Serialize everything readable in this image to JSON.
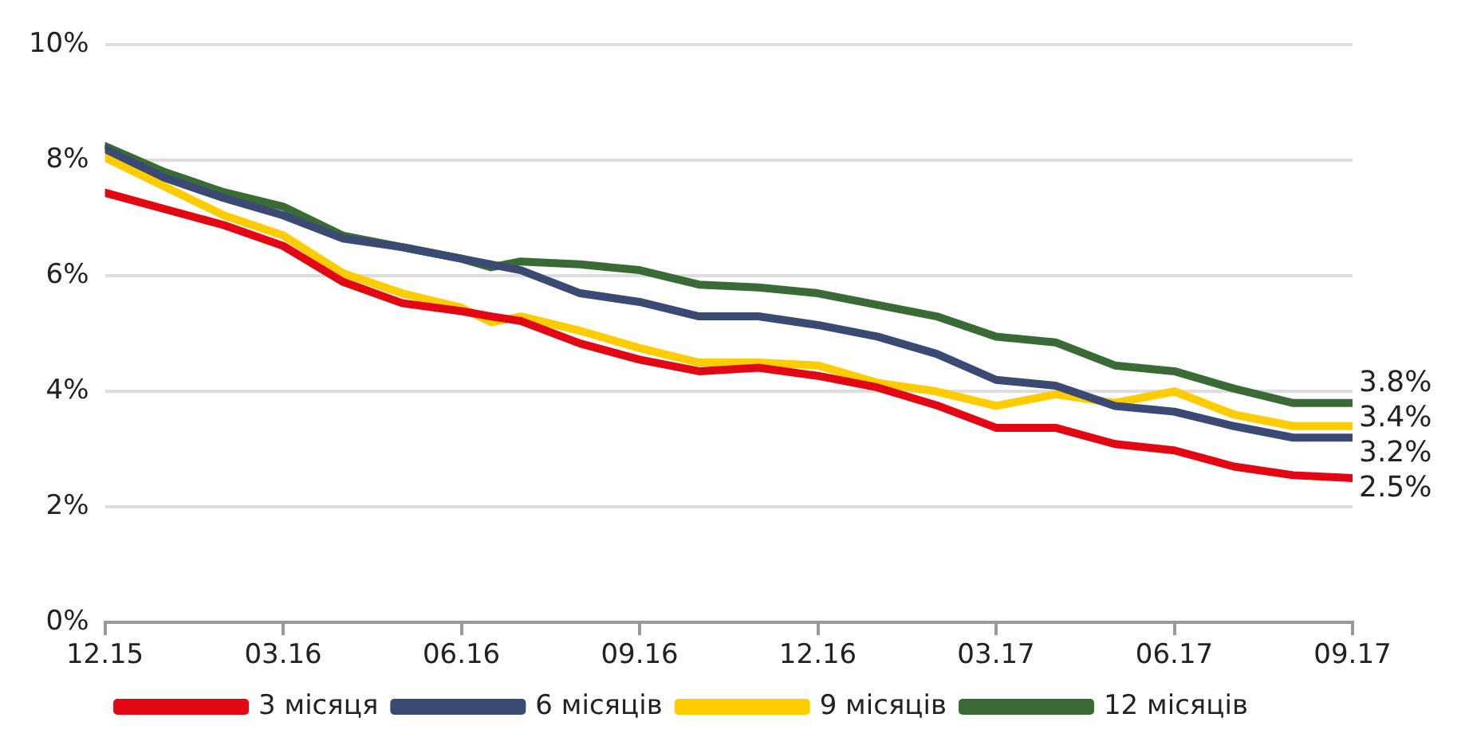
{
  "chart_data": {
    "type": "line",
    "x": [
      "2015-12",
      "2016-01",
      "2016-02",
      "2016-03",
      "2016-04",
      "2016-05",
      "2016-06",
      "2016-06-16",
      "2016-07",
      "2016-08",
      "2016-09",
      "2016-10",
      "2016-11",
      "2016-12",
      "2017-01",
      "2017-02",
      "2017-03",
      "2017-04",
      "2017-05",
      "2017-06",
      "2017-07",
      "2017-08",
      "2017-09"
    ],
    "series": [
      {
        "name": "3 місяця",
        "color": "#e30613",
        "values": [
          7.44,
          7.16,
          6.88,
          6.52,
          5.9,
          5.53,
          5.39,
          5.3,
          5.22,
          4.83,
          4.55,
          4.35,
          4.41,
          4.27,
          4.07,
          3.76,
          3.37,
          3.37,
          3.09,
          2.98,
          2.7,
          2.55,
          2.5
        ],
        "value_labels": [
          null,
          null,
          null,
          null,
          null,
          null,
          null,
          null,
          null,
          null,
          null,
          null,
          null,
          null,
          null,
          null,
          null,
          null,
          null,
          null,
          null,
          null,
          "2.5%"
        ]
      },
      {
        "name": "6 місяців",
        "color": "#3b4a72",
        "values": [
          8.2,
          7.7,
          7.35,
          7.05,
          6.65,
          6.5,
          6.3,
          6.2,
          6.1,
          5.7,
          5.55,
          5.3,
          5.3,
          5.15,
          4.95,
          4.65,
          4.2,
          4.1,
          3.75,
          3.65,
          3.4,
          3.2,
          3.2
        ],
        "value_labels": [
          null,
          null,
          null,
          null,
          null,
          null,
          null,
          null,
          null,
          null,
          null,
          null,
          null,
          null,
          null,
          null,
          null,
          null,
          null,
          null,
          null,
          null,
          "3.2%"
        ]
      },
      {
        "name": "9 місяців",
        "color": "#ffcc00",
        "values": [
          8.05,
          7.55,
          7.05,
          6.7,
          6.05,
          5.7,
          5.45,
          5.2,
          5.3,
          5.05,
          4.75,
          4.5,
          4.5,
          4.45,
          4.15,
          4.0,
          3.75,
          3.95,
          3.8,
          4.0,
          3.6,
          3.4,
          3.4
        ],
        "value_labels": [
          null,
          null,
          null,
          null,
          null,
          null,
          null,
          null,
          null,
          null,
          null,
          null,
          null,
          null,
          null,
          null,
          null,
          null,
          null,
          null,
          null,
          null,
          "3.4%"
        ]
      },
      {
        "name": "12 місяців",
        "color": "#3a6b35",
        "values": [
          8.25,
          7.8,
          7.45,
          7.2,
          6.7,
          6.5,
          6.3,
          6.15,
          6.25,
          6.2,
          6.1,
          5.85,
          5.8,
          5.7,
          5.5,
          5.3,
          4.95,
          4.85,
          4.45,
          4.35,
          4.05,
          3.8,
          3.8
        ],
        "value_labels": [
          null,
          null,
          null,
          null,
          null,
          null,
          null,
          null,
          null,
          null,
          null,
          null,
          null,
          null,
          null,
          null,
          null,
          null,
          null,
          null,
          null,
          null,
          "3.8%"
        ]
      }
    ],
    "xlim": [
      "2015-12",
      "2017-09"
    ],
    "xticks": [
      {
        "value": "2015-12",
        "label": "12.15"
      },
      {
        "value": "2016-03",
        "label": "03.16"
      },
      {
        "value": "2016-06",
        "label": "06.16"
      },
      {
        "value": "2016-09",
        "label": "09.16"
      },
      {
        "value": "2016-12",
        "label": "12.16"
      },
      {
        "value": "2017-03",
        "label": "03.17"
      },
      {
        "value": "2017-06",
        "label": "06.17"
      },
      {
        "value": "2017-09",
        "label": "09.17"
      }
    ],
    "ylim": [
      0,
      10
    ],
    "yticks": [
      {
        "value": 0,
        "label": "0%"
      },
      {
        "value": 2,
        "label": "2%"
      },
      {
        "value": 4,
        "label": "4%"
      },
      {
        "value": 6,
        "label": "6%"
      },
      {
        "value": 8,
        "label": "8%"
      },
      {
        "value": 10,
        "label": "10%"
      }
    ],
    "grid": "y",
    "legend": "bottom",
    "marker": "none",
    "line_style": "solid"
  }
}
